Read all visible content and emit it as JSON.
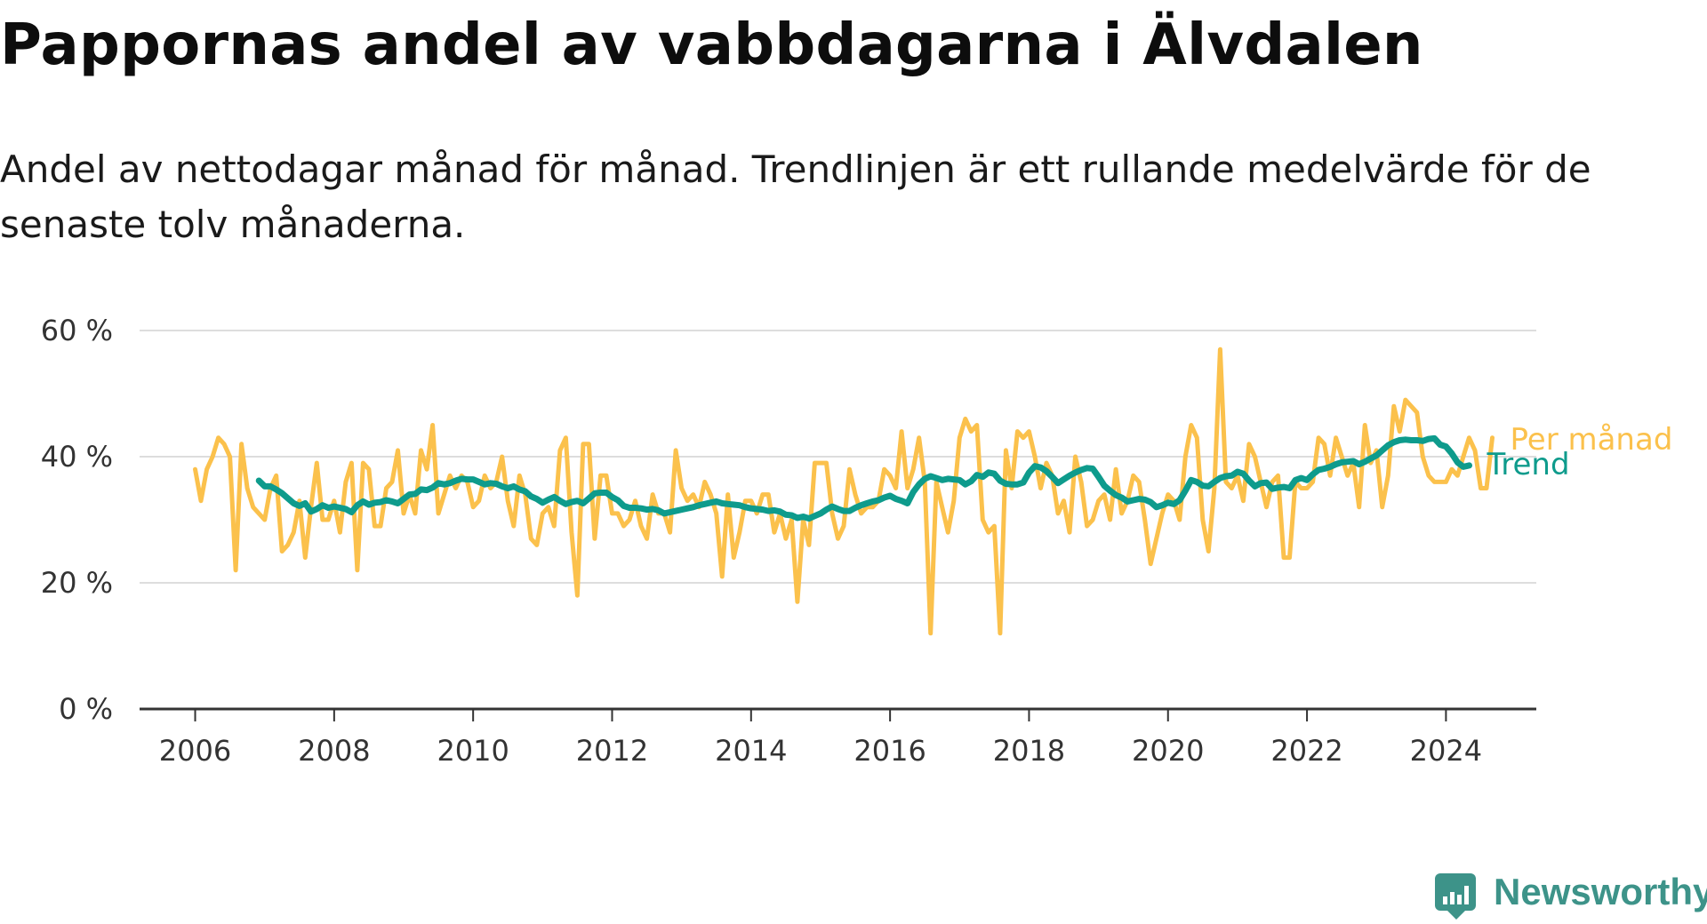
{
  "title": "Pappornas andel av vabbdagarna i Älvdalen",
  "subtitle": "Andel av nettodagar månad för månad. Trendlinjen är ett rullande medelvärde för de senaste tolv månaderna.",
  "branding": {
    "name": "Newsworthy",
    "color": "#3d9389"
  },
  "chart_data": {
    "type": "line",
    "title": "Pappornas andel av vabbdagarna i Älvdalen",
    "xlabel": "",
    "ylabel": "",
    "xlim": [
      2005.2,
      2025.3
    ],
    "ylim": [
      0,
      60
    ],
    "x_ticks": [
      "2006",
      "2008",
      "2010",
      "2012",
      "2014",
      "2016",
      "2018",
      "2020",
      "2022",
      "2024"
    ],
    "y_ticks": [
      "0 %",
      "20 %",
      "40 %",
      "60 %"
    ],
    "grid": true,
    "legend": "inline labels at line ends",
    "series": [
      {
        "name": "Per månad",
        "color": "#fbc14c",
        "x_start": 2006.0,
        "x_step": 0.0833333,
        "values": [
          38,
          33,
          38,
          40,
          43,
          42,
          40,
          22,
          42,
          35,
          32,
          31,
          30,
          35,
          37,
          25,
          26,
          28,
          33,
          24,
          32,
          39,
          30,
          30,
          33,
          28,
          36,
          39,
          22,
          39,
          38,
          29,
          29,
          35,
          36,
          41,
          31,
          34,
          31,
          41,
          38,
          45,
          31,
          34,
          37,
          35,
          37,
          36,
          32,
          33,
          37,
          35,
          36,
          40,
          33,
          29,
          37,
          34,
          27,
          26,
          31,
          32,
          29,
          41,
          43,
          28,
          18,
          42,
          42,
          27,
          37,
          37,
          31,
          31,
          29,
          30,
          33,
          29,
          27,
          34,
          31,
          31,
          28,
          41,
          35,
          33,
          34,
          32,
          36,
          34,
          31,
          21,
          34,
          24,
          28,
          33,
          33,
          31,
          34,
          34,
          28,
          31,
          27,
          30,
          17,
          30,
          26,
          39,
          39,
          39,
          31,
          27,
          29,
          38,
          34,
          31,
          32,
          32,
          33,
          38,
          37,
          35,
          44,
          35,
          38,
          43,
          36,
          12,
          36,
          32,
          28,
          33,
          43,
          46,
          44,
          45,
          30,
          28,
          29,
          12,
          41,
          35,
          44,
          43,
          44,
          40,
          35,
          39,
          37,
          31,
          33,
          28,
          40,
          36,
          29,
          30,
          33,
          34,
          30,
          38,
          31,
          33,
          37,
          36,
          30,
          23,
          27,
          31,
          34,
          33,
          30,
          40,
          45,
          43,
          30,
          25,
          35,
          57,
          36,
          35,
          37,
          33,
          42,
          40,
          36,
          32,
          36,
          37,
          24,
          24,
          36,
          35,
          35,
          36,
          43,
          42,
          37,
          43,
          40,
          37,
          39,
          32,
          45,
          39,
          41,
          32,
          37,
          48,
          44,
          49,
          48,
          47,
          40,
          37,
          36,
          36,
          36,
          38,
          37,
          40,
          43,
          41,
          35,
          35,
          43
        ]
      },
      {
        "name": "Trend",
        "color": "#0e9b8c",
        "x_start": 2006.917,
        "x_step": 0.0833333,
        "values": [
          36.2,
          35.3,
          35.3,
          34.8,
          34.2,
          33.4,
          32.6,
          32.2,
          32.6,
          31.3,
          31.7,
          32.3,
          31.9,
          32.1,
          31.9,
          31.7,
          31.2,
          32.3,
          32.9,
          32.4,
          32.7,
          32.8,
          33.1,
          32.9,
          32.6,
          33.3,
          34.0,
          34.1,
          34.8,
          34.7,
          35.1,
          35.8,
          35.6,
          35.8,
          36.2,
          36.5,
          36.4,
          36.4,
          36.0,
          35.6,
          35.8,
          35.7,
          35.3,
          35.0,
          35.3,
          34.8,
          34.5,
          33.7,
          33.3,
          32.7,
          33.2,
          33.6,
          33.0,
          32.5,
          32.8,
          33.0,
          32.6,
          33.4,
          34.2,
          34.3,
          34.3,
          33.6,
          33.1,
          32.2,
          31.9,
          31.9,
          31.8,
          31.6,
          31.7,
          31.5,
          31.0,
          31.2,
          31.4,
          31.6,
          31.8,
          32.0,
          32.3,
          32.5,
          32.7,
          32.9,
          32.6,
          32.5,
          32.4,
          32.3,
          32.0,
          31.8,
          31.7,
          31.6,
          31.4,
          31.5,
          31.3,
          30.8,
          30.7,
          30.3,
          30.5,
          30.2,
          30.6,
          31.0,
          31.6,
          32.1,
          31.7,
          31.4,
          31.4,
          31.9,
          32.3,
          32.6,
          32.9,
          33.1,
          33.5,
          33.8,
          33.3,
          33.0,
          32.6,
          34.4,
          35.6,
          36.5,
          36.9,
          36.6,
          36.3,
          36.5,
          36.4,
          36.3,
          35.6,
          36.1,
          37.1,
          36.8,
          37.5,
          37.3,
          36.2,
          35.7,
          35.6,
          35.6,
          35.9,
          37.5,
          38.5,
          38.3,
          37.7,
          36.8,
          35.8,
          36.4,
          37.0,
          37.5,
          37.9,
          38.2,
          38.1,
          36.8,
          35.4,
          34.6,
          33.9,
          33.5,
          32.9,
          33.1,
          33.3,
          33.2,
          32.8,
          32.0,
          32.3,
          32.7,
          32.5,
          33.1,
          34.6,
          36.3,
          36.0,
          35.4,
          35.3,
          36.0,
          36.6,
          36.9,
          37.0,
          37.6,
          37.3,
          36.2,
          35.3,
          35.8,
          35.9,
          34.9,
          35.1,
          35.2,
          35.0,
          36.3,
          36.6,
          36.3,
          37.2,
          37.9,
          38.1,
          38.4,
          38.8,
          39.1,
          39.2,
          39.3,
          38.8,
          39.2,
          39.7,
          40.2,
          41.0,
          41.8,
          42.3,
          42.6,
          42.7,
          42.6,
          42.6,
          42.5,
          42.8,
          42.9,
          41.9,
          41.6,
          40.5,
          39.1,
          38.4,
          38.6
        ]
      }
    ]
  }
}
